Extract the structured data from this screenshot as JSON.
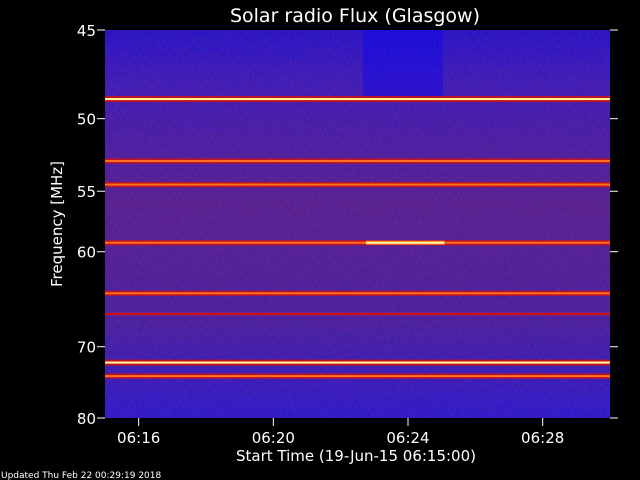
{
  "chart_data": {
    "type": "heatmap",
    "title": "Solar radio Flux (Glasgow)",
    "xlabel": "Start Time (19-Jun-15 06:15:00)",
    "ylabel": "Frequency [MHz]",
    "x_ticks": [
      "06:16",
      "06:20",
      "06:24",
      "06:28"
    ],
    "y_ticks": [
      "45",
      "50",
      "55",
      "60",
      "70",
      "80"
    ],
    "x_range": [
      "06:15:00",
      "06:30:00"
    ],
    "y_range": [
      45,
      80
    ],
    "colormap": [
      "#0000b4",
      "#2020ff",
      "#8a2a8a",
      "#d01010",
      "#ff7020",
      "#ffffa0"
    ],
    "bands": [
      {
        "freq": 48.8,
        "level": "saturated"
      },
      {
        "freq": 52.8,
        "level": "high"
      },
      {
        "freq": 54.5,
        "level": "high"
      },
      {
        "freq": 59.2,
        "level": "high"
      },
      {
        "freq": 64.0,
        "level": "high"
      },
      {
        "freq": 66.2,
        "level": "medium"
      },
      {
        "freq": 72.0,
        "level": "saturated"
      },
      {
        "freq": 73.8,
        "level": "high"
      }
    ],
    "features": [
      {
        "type": "line",
        "freq": 59.2,
        "start": "06:22:45",
        "end": "06:25:05"
      }
    ]
  },
  "footer": "Updated Thu Feb 22 00:29:19 2018"
}
